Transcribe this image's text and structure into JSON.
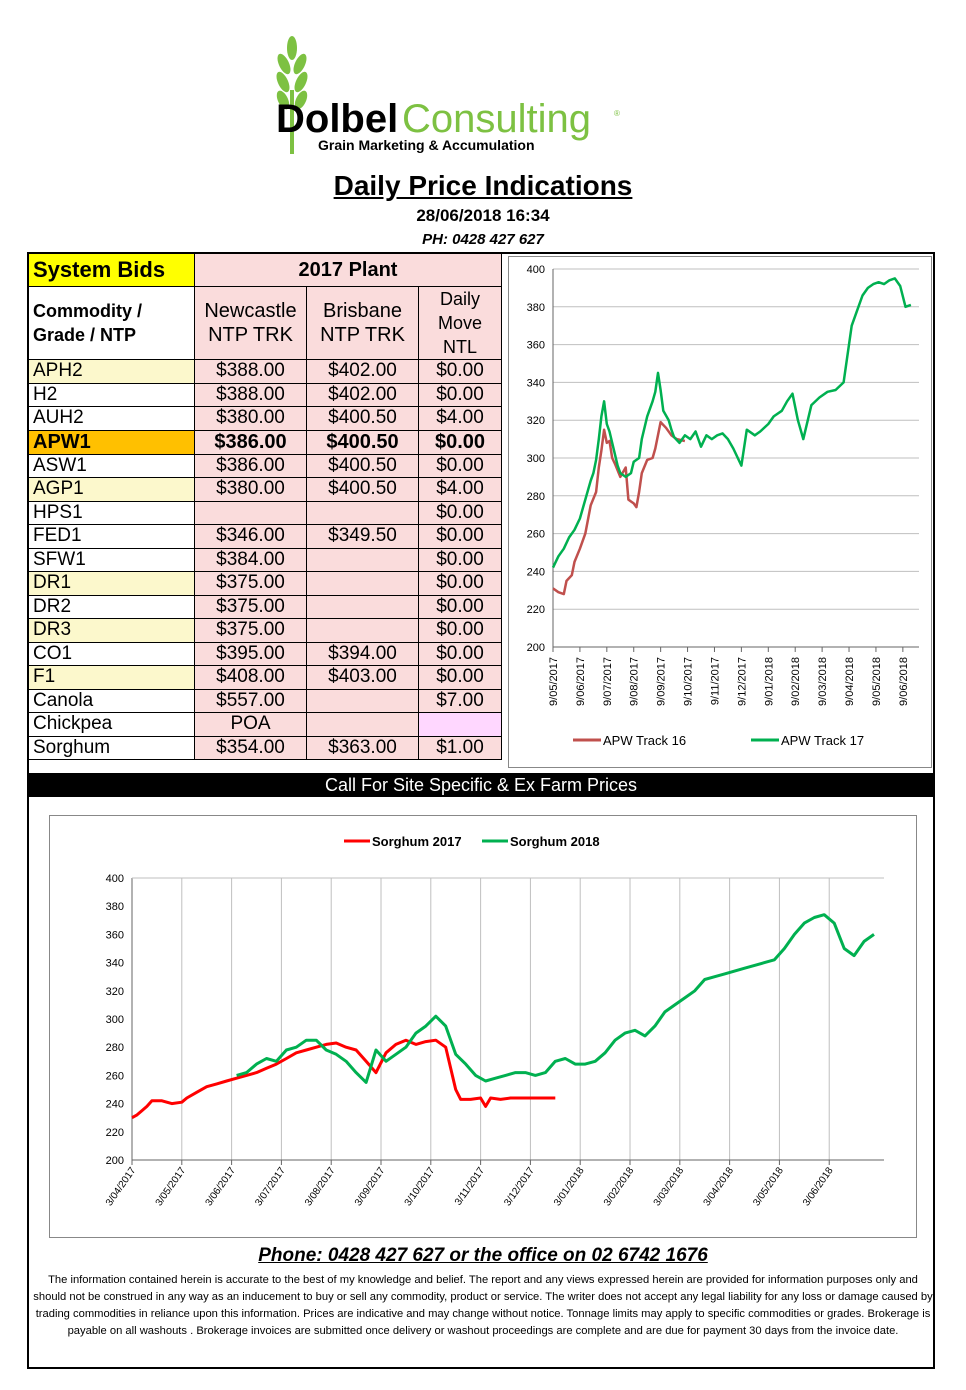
{
  "logo": {
    "brand_bold": "Dolbel",
    "brand_light": "Consulting",
    "reg": "®",
    "tagline": "Grain Marketing & Accumulation"
  },
  "title": "Daily Price Indications",
  "timestamp": "28/06/2018 16:34",
  "phone_header": "PH: 0428 427 627",
  "table": {
    "system_bids": "System Bids",
    "plant": "2017 Plant",
    "commodity_header": [
      "Commodity /",
      "Grade / NTP"
    ],
    "newcastle_header": [
      "Newcastle",
      "NTP TRK"
    ],
    "brisbane_header": [
      "Brisbane",
      "NTP TRK"
    ],
    "move_header": [
      "Daily",
      "Move",
      "NTL"
    ],
    "rows": [
      {
        "grade": "APH2",
        "newcastle": "$388.00",
        "brisbane": "$402.00",
        "move": "$0.00",
        "highlight": "yellow"
      },
      {
        "grade": "H2",
        "newcastle": "$388.00",
        "brisbane": "$402.00",
        "move": "$0.00",
        "highlight": ""
      },
      {
        "grade": "AUH2",
        "newcastle": "$380.00",
        "brisbane": "$400.50",
        "move": "$4.00",
        "highlight": ""
      },
      {
        "grade": "APW1",
        "newcastle": "$386.00",
        "brisbane": "$400.50",
        "move": "$0.00",
        "highlight": "orange"
      },
      {
        "grade": "ASW1",
        "newcastle": "$386.00",
        "brisbane": "$400.50",
        "move": "$0.00",
        "highlight": ""
      },
      {
        "grade": "AGP1",
        "newcastle": "$380.00",
        "brisbane": "$400.50",
        "move": "$4.00",
        "highlight": "yellow"
      },
      {
        "grade": "HPS1",
        "newcastle": "",
        "brisbane": "",
        "move": "$0.00",
        "highlight": ""
      },
      {
        "grade": "FED1",
        "newcastle": "$346.00",
        "brisbane": "$349.50",
        "move": "$0.00",
        "highlight": ""
      },
      {
        "grade": "SFW1",
        "newcastle": "$384.00",
        "brisbane": "",
        "move": "$0.00",
        "highlight": ""
      },
      {
        "grade": "DR1",
        "newcastle": "$375.00",
        "brisbane": "",
        "move": "$0.00",
        "highlight": "yellow"
      },
      {
        "grade": "DR2",
        "newcastle": "$375.00",
        "brisbane": "",
        "move": "$0.00",
        "highlight": ""
      },
      {
        "grade": "DR3",
        "newcastle": "$375.00",
        "brisbane": "",
        "move": "$0.00",
        "highlight": "yellow"
      },
      {
        "grade": "CO1",
        "newcastle": "$395.00",
        "brisbane": "$394.00",
        "move": "$0.00",
        "highlight": ""
      },
      {
        "grade": "F1",
        "newcastle": "$408.00",
        "brisbane": "$403.00",
        "move": "$0.00",
        "highlight": "yellow"
      },
      {
        "grade": "Canola",
        "newcastle": "$557.00",
        "brisbane": "",
        "move": "$7.00",
        "highlight": ""
      },
      {
        "grade": "Chickpea",
        "newcastle": "POA",
        "brisbane": "",
        "move": "",
        "highlight": ""
      },
      {
        "grade": "Sorghum",
        "newcastle": "$354.00",
        "brisbane": "$363.00",
        "move": "$1.00",
        "highlight": ""
      }
    ]
  },
  "banner": "Call For Site Specific & Ex Farm Prices",
  "chart_data": [
    {
      "type": "line",
      "title": "",
      "xlabel": "",
      "ylabel": "",
      "ylim": [
        200,
        400
      ],
      "yticks": [
        "200",
        "220",
        "240",
        "260",
        "280",
        "300",
        "320",
        "340",
        "360",
        "380",
        "400"
      ],
      "x_tick_labels": [
        "9/05/2017",
        "9/06/2017",
        "9/07/2017",
        "9/08/2017",
        "9/09/2017",
        "9/10/2017",
        "9/11/2017",
        "9/12/2017",
        "9/01/2018",
        "9/02/2018",
        "9/03/2018",
        "9/04/2018",
        "9/05/2018",
        "9/06/2018"
      ],
      "legend_position": "bottom",
      "grid": "horizontal",
      "series": [
        {
          "name": "APW Track 16",
          "color": "#c0504d",
          "x": [
            0,
            0.2,
            0.4,
            0.5,
            0.7,
            0.8,
            1.0,
            1.2,
            1.4,
            1.6,
            1.7,
            1.8,
            1.9,
            2.0,
            2.1,
            2.2,
            2.3,
            2.5,
            2.7,
            2.8,
            2.9,
            3.0,
            3.1,
            3.2,
            3.3,
            3.5,
            3.7,
            3.8,
            4.0,
            4.2,
            4.4,
            4.6,
            4.9
          ],
          "values": [
            231,
            229,
            228,
            235,
            238,
            245,
            252,
            260,
            275,
            282,
            295,
            304,
            315,
            308,
            309,
            300,
            297,
            290,
            295,
            278,
            277,
            276,
            274,
            282,
            292,
            299,
            300,
            305,
            319,
            316,
            312,
            310,
            309
          ]
        },
        {
          "name": "APW Track 17",
          "color": "#00b050",
          "x": [
            0,
            0.2,
            0.4,
            0.6,
            0.8,
            1.0,
            1.2,
            1.4,
            1.5,
            1.6,
            1.7,
            1.8,
            1.9,
            2.0,
            2.1,
            2.2,
            2.3,
            2.4,
            2.5,
            2.7,
            2.9,
            3.0,
            3.2,
            3.3,
            3.5,
            3.7,
            3.8,
            3.9,
            4.0,
            4.1,
            4.3,
            4.4,
            4.5,
            4.7,
            4.9,
            5.1,
            5.3,
            5.5,
            5.7,
            5.9,
            6.1,
            6.3,
            6.5,
            6.7,
            7.0,
            7.2,
            7.5,
            7.7,
            8.0,
            8.2,
            8.5,
            8.7,
            8.9,
            9.1,
            9.3,
            9.6,
            9.9,
            10.2,
            10.5,
            10.8,
            11.1,
            11.3,
            11.5,
            11.7,
            11.9,
            12.1,
            12.3,
            12.5,
            12.7,
            12.9,
            13.1,
            13.3
          ],
          "values": [
            242,
            248,
            252,
            258,
            262,
            268,
            278,
            288,
            292,
            299,
            310,
            322,
            330,
            318,
            314,
            308,
            302,
            296,
            292,
            290,
            292,
            298,
            300,
            310,
            322,
            330,
            335,
            345,
            336,
            325,
            320,
            315,
            311,
            308,
            312,
            310,
            314,
            306,
            312,
            310,
            312,
            313,
            310,
            305,
            296,
            315,
            312,
            314,
            318,
            322,
            325,
            330,
            334,
            320,
            310,
            328,
            332,
            335,
            336,
            340,
            370,
            378,
            386,
            390,
            392,
            393,
            392,
            394,
            395,
            391,
            380,
            381
          ]
        }
      ]
    },
    {
      "type": "line",
      "title": "",
      "xlabel": "",
      "ylabel": "",
      "ylim": [
        200,
        400
      ],
      "yticks": [
        "200",
        "220",
        "240",
        "260",
        "280",
        "300",
        "320",
        "340",
        "360",
        "380",
        "400"
      ],
      "x_tick_labels": [
        "3/04/2017",
        "3/05/2017",
        "3/06/2017",
        "3/07/2017",
        "3/08/2017",
        "3/09/2017",
        "3/10/2017",
        "3/11/2017",
        "3/12/2017",
        "3/01/2018",
        "3/02/2018",
        "3/03/2018",
        "3/04/2018",
        "3/05/2018",
        "3/06/2018"
      ],
      "legend_position": "top",
      "grid": "vertical",
      "series": [
        {
          "name": "Sorghum 2017",
          "color": "#ff0000",
          "x": [
            0,
            0.1,
            0.2,
            0.3,
            0.4,
            0.6,
            0.8,
            1.0,
            1.1,
            1.3,
            1.5,
            1.7,
            1.9,
            2.1,
            2.3,
            2.5,
            2.7,
            2.9,
            3.1,
            3.3,
            3.5,
            3.7,
            3.9,
            4.1,
            4.3,
            4.5,
            4.7,
            4.9,
            5.1,
            5.3,
            5.5,
            5.7,
            5.9,
            6.1,
            6.3,
            6.5,
            6.6,
            6.8,
            7.0,
            7.1,
            7.2,
            7.4,
            7.6,
            7.8,
            8.0,
            8.2,
            8.4,
            8.5
          ],
          "values": [
            230,
            232,
            235,
            238,
            242,
            242,
            240,
            241,
            244,
            248,
            252,
            254,
            256,
            258,
            260,
            262,
            265,
            268,
            272,
            276,
            278,
            280,
            282,
            283,
            280,
            278,
            270,
            262,
            276,
            282,
            285,
            282,
            284,
            285,
            280,
            250,
            243,
            243,
            244,
            238,
            244,
            243,
            244,
            244,
            244,
            244,
            244,
            244
          ]
        },
        {
          "name": "Sorghum 2018",
          "color": "#00b050",
          "x": [
            2.1,
            2.3,
            2.5,
            2.7,
            2.9,
            3.1,
            3.3,
            3.5,
            3.7,
            3.9,
            4.1,
            4.3,
            4.5,
            4.7,
            4.9,
            5.1,
            5.3,
            5.5,
            5.7,
            5.9,
            6.1,
            6.3,
            6.5,
            6.7,
            6.9,
            7.1,
            7.3,
            7.5,
            7.7,
            7.9,
            8.1,
            8.3,
            8.5,
            8.7,
            8.9,
            9.1,
            9.3,
            9.5,
            9.7,
            9.9,
            10.1,
            10.3,
            10.5,
            10.7,
            10.9,
            11.1,
            11.3,
            11.5,
            11.7,
            11.9,
            12.1,
            12.3,
            12.5,
            12.7,
            12.9,
            13.1,
            13.3,
            13.5,
            13.7,
            13.9,
            14.1,
            14.3,
            14.5,
            14.7,
            14.9
          ],
          "values": [
            260,
            262,
            268,
            272,
            270,
            278,
            280,
            285,
            285,
            278,
            275,
            270,
            262,
            255,
            278,
            270,
            275,
            280,
            290,
            295,
            302,
            295,
            275,
            268,
            260,
            256,
            258,
            260,
            262,
            262,
            260,
            262,
            270,
            272,
            268,
            268,
            270,
            276,
            285,
            290,
            292,
            288,
            295,
            305,
            310,
            315,
            320,
            328,
            330,
            332,
            334,
            336,
            338,
            340,
            342,
            350,
            360,
            368,
            372,
            374,
            368,
            350,
            345,
            355,
            360
          ]
        }
      ]
    }
  ],
  "footer": {
    "phone_line": "Phone: 0428 427 627 or the office on 02 6742 1676",
    "disclaimer": "The information contained herein is accurate to the best of my knowledge and belief.  The report and any views expressed herein are provided for information purposes only and should not be construed in any way as an inducement to buy or sell any commodity, product or service. The writer does not accept any legal liability for any loss or damage caused by trading commodities in reliance upon this information. Prices are indicative and may change without notice. Tonnage limits may apply to specific commodities or grades.  Brokerage is payable on all washouts . Brokerage invoices are submitted once delivery or washout proceedings are complete and are due for payment 30 days from the invoice date."
  }
}
